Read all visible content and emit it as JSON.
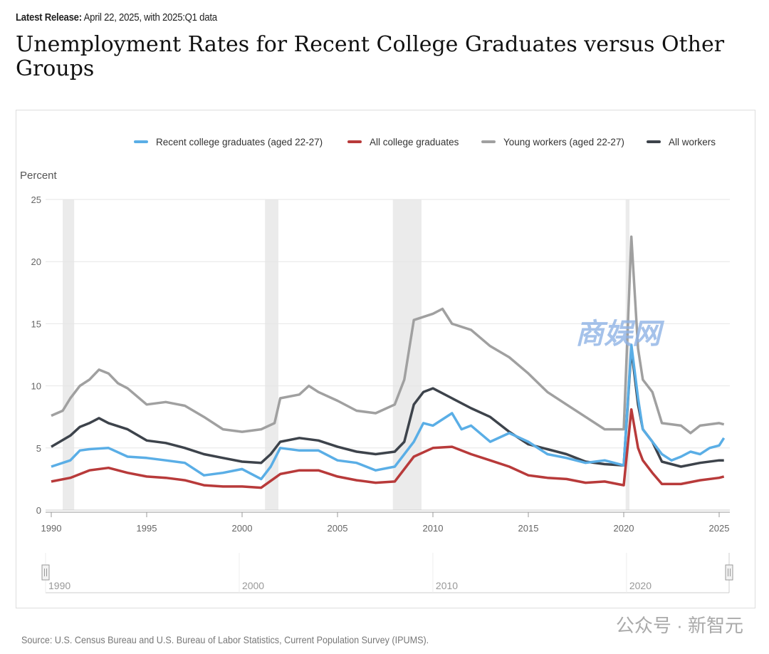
{
  "header": {
    "release_label": "Latest Release:",
    "release_text": "April 22, 2025, with 2025:Q1 data",
    "title": "Unemployment Rates for Recent College Graduates versus Other Groups"
  },
  "source": "Source: U.S. Census Bureau and U.S. Bureau of Labor Statistics, Current Population Survey (IPUMS).",
  "watermarks": {
    "logo": "商娱网",
    "account": "公众号 · 新智元"
  },
  "chart_data": {
    "type": "line",
    "ylabel": "Percent",
    "ylim": [
      0,
      25
    ],
    "xlim": [
      1990,
      2025.25
    ],
    "yticks": [
      "0",
      "5",
      "10",
      "15",
      "20",
      "25"
    ],
    "xticks": [
      "1990",
      "1995",
      "2000",
      "2005",
      "2010",
      "2015",
      "2020",
      "2025"
    ],
    "navigator_ticks": [
      "1990",
      "2000",
      "2010",
      "2020"
    ],
    "grid": true,
    "legend_position": "top",
    "recessions": [
      [
        1990.6,
        1991.2
      ],
      [
        2001.2,
        2001.9
      ],
      [
        2007.9,
        2009.4
      ],
      [
        2020.1,
        2020.3
      ]
    ],
    "series": [
      {
        "name": "Recent college graduates (aged 22-27)",
        "color": "#5aaee6",
        "points": [
          [
            1990,
            3.5
          ],
          [
            1991,
            4.0
          ],
          [
            1991.5,
            4.8
          ],
          [
            1992,
            4.9
          ],
          [
            1993,
            5.0
          ],
          [
            1994,
            4.3
          ],
          [
            1995,
            4.2
          ],
          [
            1996,
            4.0
          ],
          [
            1997,
            3.8
          ],
          [
            1998,
            2.8
          ],
          [
            1999,
            3.0
          ],
          [
            2000,
            3.3
          ],
          [
            2001,
            2.5
          ],
          [
            2001.5,
            3.5
          ],
          [
            2002,
            5.0
          ],
          [
            2003,
            4.8
          ],
          [
            2004,
            4.8
          ],
          [
            2005,
            4.0
          ],
          [
            2006,
            3.8
          ],
          [
            2007,
            3.2
          ],
          [
            2008,
            3.5
          ],
          [
            2009,
            5.5
          ],
          [
            2009.5,
            7.0
          ],
          [
            2010,
            6.8
          ],
          [
            2011,
            7.8
          ],
          [
            2011.5,
            6.5
          ],
          [
            2012,
            6.8
          ],
          [
            2013,
            5.5
          ],
          [
            2014,
            6.2
          ],
          [
            2015,
            5.5
          ],
          [
            2016,
            4.5
          ],
          [
            2017,
            4.2
          ],
          [
            2018,
            3.8
          ],
          [
            2019,
            4.0
          ],
          [
            2020,
            3.6
          ],
          [
            2020.4,
            13.3
          ],
          [
            2020.75,
            9.0
          ],
          [
            2021,
            6.5
          ],
          [
            2021.5,
            5.5
          ],
          [
            2022,
            4.5
          ],
          [
            2022.5,
            4.0
          ],
          [
            2023,
            4.3
          ],
          [
            2023.5,
            4.7
          ],
          [
            2024,
            4.5
          ],
          [
            2024.5,
            5.0
          ],
          [
            2025,
            5.2
          ],
          [
            2025.25,
            5.8
          ]
        ]
      },
      {
        "name": "All college graduates",
        "color": "#b83a3a",
        "points": [
          [
            1990,
            2.3
          ],
          [
            1991,
            2.6
          ],
          [
            1992,
            3.2
          ],
          [
            1993,
            3.4
          ],
          [
            1994,
            3.0
          ],
          [
            1995,
            2.7
          ],
          [
            1996,
            2.6
          ],
          [
            1997,
            2.4
          ],
          [
            1998,
            2.0
          ],
          [
            1999,
            1.9
          ],
          [
            2000,
            1.9
          ],
          [
            2001,
            1.8
          ],
          [
            2002,
            2.9
          ],
          [
            2003,
            3.2
          ],
          [
            2004,
            3.2
          ],
          [
            2005,
            2.7
          ],
          [
            2006,
            2.4
          ],
          [
            2007,
            2.2
          ],
          [
            2008,
            2.3
          ],
          [
            2009,
            4.3
          ],
          [
            2010,
            5.0
          ],
          [
            2011,
            5.1
          ],
          [
            2012,
            4.5
          ],
          [
            2013,
            4.0
          ],
          [
            2014,
            3.5
          ],
          [
            2015,
            2.8
          ],
          [
            2016,
            2.6
          ],
          [
            2017,
            2.5
          ],
          [
            2018,
            2.2
          ],
          [
            2019,
            2.3
          ],
          [
            2020,
            2.0
          ],
          [
            2020.4,
            8.1
          ],
          [
            2020.75,
            5.0
          ],
          [
            2021,
            4.0
          ],
          [
            2021.5,
            3.0
          ],
          [
            2022,
            2.1
          ],
          [
            2023,
            2.1
          ],
          [
            2024,
            2.4
          ],
          [
            2025,
            2.6
          ],
          [
            2025.25,
            2.7
          ]
        ]
      },
      {
        "name": "Young workers (aged 22-27)",
        "color": "#a0a0a0",
        "points": [
          [
            1990,
            7.6
          ],
          [
            1990.6,
            8.0
          ],
          [
            1991,
            9.0
          ],
          [
            1991.5,
            10.0
          ],
          [
            1992,
            10.5
          ],
          [
            1992.5,
            11.3
          ],
          [
            1993,
            11.0
          ],
          [
            1993.5,
            10.2
          ],
          [
            1994,
            9.8
          ],
          [
            1995,
            8.5
          ],
          [
            1996,
            8.7
          ],
          [
            1997,
            8.4
          ],
          [
            1998,
            7.5
          ],
          [
            1999,
            6.5
          ],
          [
            2000,
            6.3
          ],
          [
            2001,
            6.5
          ],
          [
            2001.7,
            7.0
          ],
          [
            2002,
            9.0
          ],
          [
            2003,
            9.3
          ],
          [
            2003.5,
            10.0
          ],
          [
            2004,
            9.5
          ],
          [
            2005,
            8.8
          ],
          [
            2006,
            8.0
          ],
          [
            2007,
            7.8
          ],
          [
            2008,
            8.5
          ],
          [
            2008.5,
            10.5
          ],
          [
            2009,
            15.3
          ],
          [
            2010,
            15.8
          ],
          [
            2010.5,
            16.2
          ],
          [
            2011,
            15.0
          ],
          [
            2012,
            14.5
          ],
          [
            2013,
            13.2
          ],
          [
            2014,
            12.3
          ],
          [
            2015,
            11.0
          ],
          [
            2016,
            9.5
          ],
          [
            2017,
            8.5
          ],
          [
            2018,
            7.5
          ],
          [
            2019,
            6.5
          ],
          [
            2020,
            6.5
          ],
          [
            2020.4,
            22.0
          ],
          [
            2020.75,
            13.0
          ],
          [
            2021,
            10.5
          ],
          [
            2021.5,
            9.5
          ],
          [
            2022,
            7.0
          ],
          [
            2023,
            6.8
          ],
          [
            2023.5,
            6.2
          ],
          [
            2024,
            6.8
          ],
          [
            2025,
            7.0
          ],
          [
            2025.25,
            6.9
          ]
        ]
      },
      {
        "name": "All workers",
        "color": "#3d434b",
        "points": [
          [
            1990,
            5.1
          ],
          [
            1991,
            6.0
          ],
          [
            1991.5,
            6.7
          ],
          [
            1992,
            7.0
          ],
          [
            1992.5,
            7.4
          ],
          [
            1993,
            7.0
          ],
          [
            1994,
            6.5
          ],
          [
            1995,
            5.6
          ],
          [
            1996,
            5.4
          ],
          [
            1997,
            5.0
          ],
          [
            1998,
            4.5
          ],
          [
            1999,
            4.2
          ],
          [
            2000,
            3.9
          ],
          [
            2001,
            3.8
          ],
          [
            2001.5,
            4.5
          ],
          [
            2002,
            5.5
          ],
          [
            2003,
            5.8
          ],
          [
            2004,
            5.6
          ],
          [
            2005,
            5.1
          ],
          [
            2006,
            4.7
          ],
          [
            2007,
            4.5
          ],
          [
            2008,
            4.7
          ],
          [
            2008.5,
            5.5
          ],
          [
            2009,
            8.5
          ],
          [
            2009.5,
            9.5
          ],
          [
            2010,
            9.8
          ],
          [
            2011,
            9.0
          ],
          [
            2012,
            8.2
          ],
          [
            2013,
            7.5
          ],
          [
            2014,
            6.3
          ],
          [
            2015,
            5.3
          ],
          [
            2016,
            4.9
          ],
          [
            2017,
            4.5
          ],
          [
            2018,
            3.9
          ],
          [
            2019,
            3.7
          ],
          [
            2020,
            3.6
          ],
          [
            2020.4,
            13.0
          ],
          [
            2020.75,
            8.5
          ],
          [
            2021,
            6.5
          ],
          [
            2021.5,
            5.5
          ],
          [
            2022,
            3.9
          ],
          [
            2023,
            3.5
          ],
          [
            2024,
            3.8
          ],
          [
            2025,
            4.0
          ],
          [
            2025.25,
            4.0
          ]
        ]
      }
    ]
  }
}
